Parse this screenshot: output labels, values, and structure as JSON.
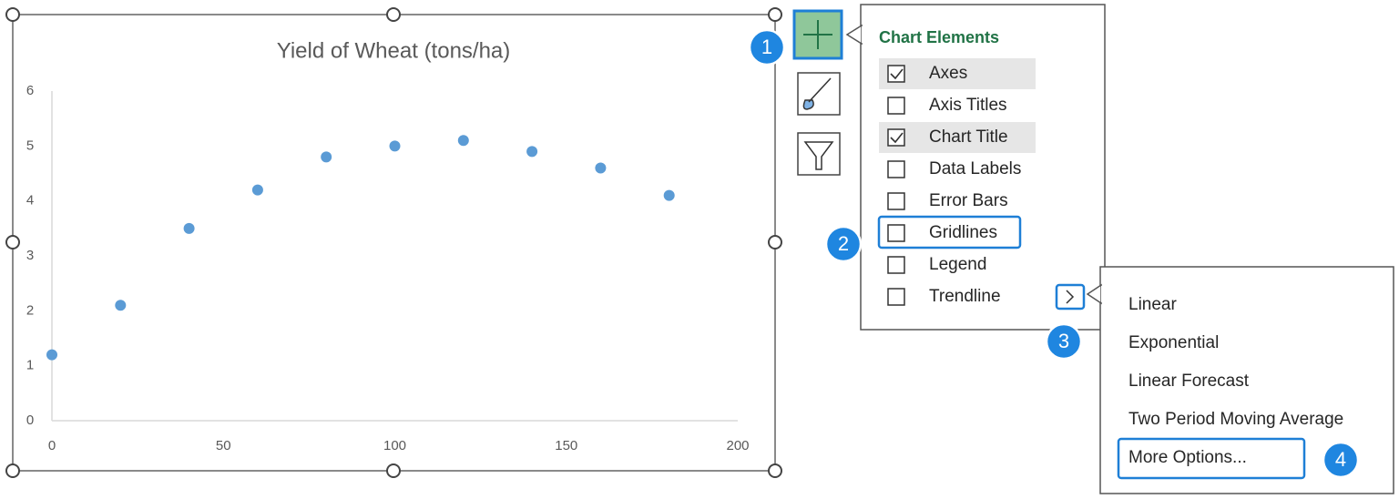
{
  "chart_data": {
    "type": "scatter",
    "title": "Yield of Wheat (tons/ha)",
    "x": [
      0,
      20,
      40,
      60,
      80,
      100,
      120,
      140,
      160,
      180
    ],
    "values": [
      1.2,
      2.1,
      3.5,
      4.2,
      4.8,
      5.0,
      5.1,
      4.9,
      4.6,
      4.1
    ],
    "color": "#5b9bd5",
    "xlim": [
      0,
      200
    ],
    "xticks": [
      0,
      50,
      100,
      150,
      200
    ],
    "ylim": [
      0,
      6
    ],
    "yticks": [
      0,
      1,
      2,
      3,
      4,
      5,
      6
    ],
    "grid": false
  },
  "chart_elements": {
    "title": "Chart Elements",
    "items": [
      {
        "label": "Axes",
        "checked": true
      },
      {
        "label": "Axis Titles",
        "checked": false
      },
      {
        "label": "Chart Title",
        "checked": true
      },
      {
        "label": "Data Labels",
        "checked": false
      },
      {
        "label": "Error Bars",
        "checked": false
      },
      {
        "label": "Gridlines",
        "checked": false
      },
      {
        "label": "Legend",
        "checked": false
      },
      {
        "label": "Trendline",
        "checked": false
      }
    ]
  },
  "trendline_menu": {
    "items": [
      "Linear",
      "Exponential",
      "Linear Forecast",
      "Two Period Moving Average",
      "More Options..."
    ]
  },
  "steps": [
    1,
    2,
    3,
    4
  ]
}
